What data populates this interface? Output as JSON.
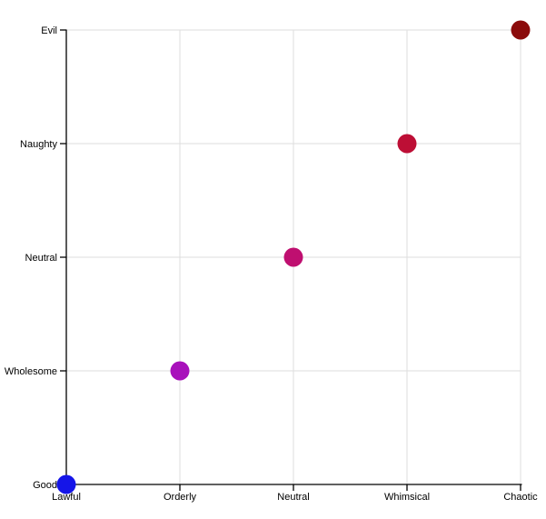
{
  "chart_data": {
    "type": "scatter",
    "title": "",
    "xlabel": "",
    "ylabel": "",
    "x_categories": [
      "Lawful",
      "Orderly",
      "Neutral",
      "Whimsical",
      "Chaotic"
    ],
    "y_categories": [
      "Good",
      "Wholesome",
      "Neutral",
      "Naughty",
      "Evil"
    ],
    "grid": true,
    "legend": false,
    "marker_radius": 10.5,
    "points": [
      {
        "x": "Lawful",
        "y": "Good",
        "color": "#1515e8"
      },
      {
        "x": "Orderly",
        "y": "Wholesome",
        "color": "#a811bb"
      },
      {
        "x": "Neutral",
        "y": "Neutral",
        "color": "#bf0f70"
      },
      {
        "x": "Whimsical",
        "y": "Naughty",
        "color": "#bd0e35"
      },
      {
        "x": "Chaotic",
        "y": "Evil",
        "color": "#8b0b0b"
      }
    ],
    "colors": {
      "grid": "#dddddd",
      "axis": "#000000",
      "tick": "#000000",
      "label": "#000000",
      "background": "#ffffff"
    }
  }
}
